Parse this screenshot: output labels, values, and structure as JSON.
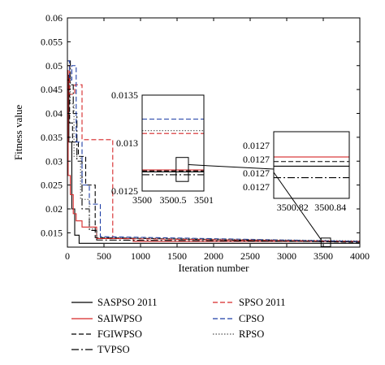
{
  "chart_data": [
    {
      "id": "main",
      "type": "line",
      "title": "",
      "xlabel": "Iteration number",
      "ylabel": "Fitness value",
      "xlim": [
        0,
        4000
      ],
      "ylim": [
        0.012,
        0.06
      ],
      "x_ticks": [
        0,
        500,
        1000,
        1500,
        2000,
        2500,
        3000,
        3500,
        4000
      ],
      "x_tick_labels": [
        "0",
        "500",
        "1000",
        "1500",
        "2000",
        "2500",
        "3000",
        "3500",
        "4000"
      ],
      "y_ticks": [
        0.015,
        0.02,
        0.025,
        0.03,
        0.035,
        0.04,
        0.045,
        0.05,
        0.055,
        0.06
      ],
      "y_tick_labels": [
        "0.015",
        "0.02",
        "0.025",
        "0.03",
        "0.035",
        "0.04",
        "0.045",
        "0.05",
        "0.055",
        "0.06"
      ],
      "grid": false,
      "series": [
        {
          "name": "SASPSO 2011",
          "color": "#000000",
          "dash": "solid",
          "points": [
            [
              0,
              0.048
            ],
            [
              20,
              0.048
            ],
            [
              20,
              0.034
            ],
            [
              60,
              0.034
            ],
            [
              60,
              0.02
            ],
            [
              100,
              0.02
            ],
            [
              100,
              0.0145
            ],
            [
              160,
              0.0145
            ],
            [
              160,
              0.0128
            ],
            [
              4000,
              0.0128
            ]
          ]
        },
        {
          "name": "SAIWPSO",
          "color": "#d62728",
          "dash": "solid",
          "points": [
            [
              0,
              0.049
            ],
            [
              10,
              0.049
            ],
            [
              10,
              0.027
            ],
            [
              40,
              0.027
            ],
            [
              40,
              0.023
            ],
            [
              80,
              0.023
            ],
            [
              80,
              0.019
            ],
            [
              120,
              0.019
            ],
            [
              120,
              0.0175
            ],
            [
              200,
              0.0175
            ],
            [
              200,
              0.0162
            ],
            [
              400,
              0.0162
            ],
            [
              400,
              0.0138
            ],
            [
              900,
              0.0138
            ],
            [
              900,
              0.0132
            ],
            [
              4000,
              0.0132
            ]
          ]
        },
        {
          "name": "FGIWPSO",
          "color": "#000000",
          "dash": "6,3",
          "points": [
            [
              0,
              0.047
            ],
            [
              30,
              0.047
            ],
            [
              30,
              0.038
            ],
            [
              70,
              0.038
            ],
            [
              70,
              0.034
            ],
            [
              150,
              0.034
            ],
            [
              150,
              0.031
            ],
            [
              250,
              0.031
            ],
            [
              250,
              0.025
            ],
            [
              380,
              0.025
            ],
            [
              380,
              0.014
            ],
            [
              4000,
              0.013
            ]
          ]
        },
        {
          "name": "TVPSO",
          "color": "#000000",
          "dash": "9,3,2,3",
          "points": [
            [
              0,
              0.051
            ],
            [
              40,
              0.051
            ],
            [
              40,
              0.046
            ],
            [
              80,
              0.046
            ],
            [
              80,
              0.04
            ],
            [
              130,
              0.04
            ],
            [
              130,
              0.03
            ],
            [
              200,
              0.03
            ],
            [
              200,
              0.02
            ],
            [
              300,
              0.02
            ],
            [
              300,
              0.0155
            ],
            [
              400,
              0.0155
            ],
            [
              400,
              0.0135
            ],
            [
              4000,
              0.0131
            ]
          ]
        },
        {
          "name": "SPSO 2011",
          "color": "#d62728",
          "dash": "6,3",
          "points": [
            [
              0,
              0.05
            ],
            [
              30,
              0.05
            ],
            [
              30,
              0.044
            ],
            [
              100,
              0.044
            ],
            [
              100,
              0.046
            ],
            [
              200,
              0.046
            ],
            [
              200,
              0.0345
            ],
            [
              620,
              0.0345
            ],
            [
              620,
              0.0138
            ],
            [
              4000,
              0.0132
            ]
          ]
        },
        {
          "name": "CPSO",
          "color": "#1f3fa6",
          "dash": "6,3",
          "points": [
            [
              0,
              0.051
            ],
            [
              30,
              0.051
            ],
            [
              30,
              0.047
            ],
            [
              60,
              0.047
            ],
            [
              60,
              0.05
            ],
            [
              120,
              0.05
            ],
            [
              120,
              0.034
            ],
            [
              200,
              0.034
            ],
            [
              200,
              0.025
            ],
            [
              300,
              0.025
            ],
            [
              300,
              0.021
            ],
            [
              450,
              0.021
            ],
            [
              450,
              0.0142
            ],
            [
              4000,
              0.0132
            ]
          ]
        },
        {
          "name": "RPSO",
          "color": "#555555",
          "dash": "1.5,2",
          "points": [
            [
              0,
              0.05
            ],
            [
              40,
              0.05
            ],
            [
              40,
              0.042
            ],
            [
              90,
              0.042
            ],
            [
              90,
              0.031
            ],
            [
              180,
              0.031
            ],
            [
              180,
              0.022
            ],
            [
              300,
              0.022
            ],
            [
              300,
              0.0158
            ],
            [
              400,
              0.0158
            ],
            [
              400,
              0.014
            ],
            [
              4000,
              0.0133
            ]
          ]
        }
      ]
    },
    {
      "id": "inset1",
      "type": "line",
      "xlim": [
        3500,
        3501
      ],
      "ylim": [
        0.0125,
        0.0135
      ],
      "x_ticks": [
        3500,
        3500.5,
        3501
      ],
      "x_tick_labels": [
        "3500",
        "3500.5",
        "3501"
      ],
      "y_ticks": [
        0.0125,
        0.013,
        0.0135
      ],
      "y_tick_labels": [
        "0.0125",
        "0.013",
        "0.0135"
      ],
      "series": [
        {
          "name": "SASPSO 2011",
          "color": "#000000",
          "dash": "solid",
          "points": [
            [
              3500,
              0.0127
            ],
            [
              3501,
              0.0127
            ]
          ]
        },
        {
          "name": "SAIWPSO",
          "color": "#d62728",
          "dash": "solid",
          "points": [
            [
              3500,
              0.01272
            ],
            [
              3501,
              0.01272
            ]
          ]
        },
        {
          "name": "FGIWPSO",
          "color": "#000000",
          "dash": "6,3",
          "points": [
            [
              3500,
              0.01271
            ],
            [
              3501,
              0.01271
            ]
          ]
        },
        {
          "name": "TVPSO",
          "color": "#000000",
          "dash": "9,3,2,3",
          "points": [
            [
              3500,
              0.01267
            ],
            [
              3501,
              0.01267
            ]
          ]
        },
        {
          "name": "SPSO 2011",
          "color": "#d62728",
          "dash": "6,3",
          "points": [
            [
              3500,
              0.0131
            ],
            [
              3501,
              0.0131
            ]
          ]
        },
        {
          "name": "CPSO",
          "color": "#1f3fa6",
          "dash": "6,3",
          "points": [
            [
              3500,
              0.01325
            ],
            [
              3501,
              0.01325
            ]
          ]
        },
        {
          "name": "RPSO",
          "color": "#555555",
          "dash": "1.5,2",
          "points": [
            [
              3500,
              0.01313
            ],
            [
              3501,
              0.01313
            ]
          ]
        }
      ]
    },
    {
      "id": "inset2",
      "type": "line",
      "xlim": [
        3500.81,
        3500.85
      ],
      "ylim": [
        0.012693,
        0.012722
      ],
      "x_ticks": [
        3500.82,
        3500.84
      ],
      "x_tick_labels": [
        "3500.82",
        "3500.84"
      ],
      "y_ticks": [
        0.012698,
        0.012704,
        0.01271,
        0.012716
      ],
      "y_tick_labels": [
        "0.0127",
        "0.0127",
        "0.0127",
        "0.0127"
      ],
      "series": [
        {
          "name": "SAIWPSO",
          "color": "#d62728",
          "dash": "solid",
          "points": [
            [
              3500.81,
              0.012711
            ],
            [
              3500.85,
              0.012711
            ]
          ]
        },
        {
          "name": "FGIWPSO",
          "color": "#000000",
          "dash": "6,3",
          "points": [
            [
              3500.81,
              0.012709
            ],
            [
              3500.85,
              0.012709
            ]
          ]
        },
        {
          "name": "SASPSO 2011",
          "color": "#000000",
          "dash": "solid",
          "points": [
            [
              3500.81,
              0.012707
            ],
            [
              3500.85,
              0.012707
            ]
          ]
        },
        {
          "name": "TVPSO",
          "color": "#000000",
          "dash": "9,3,2,3",
          "points": [
            [
              3500.81,
              0.012702
            ],
            [
              3500.85,
              0.012702
            ]
          ]
        }
      ]
    }
  ],
  "legend": [
    {
      "label": "SASPSO 2011",
      "color": "#000000",
      "dash": "solid"
    },
    {
      "label": "SAIWPSO",
      "color": "#d62728",
      "dash": "solid"
    },
    {
      "label": "FGIWPSO",
      "color": "#000000",
      "dash": "6,3"
    },
    {
      "label": "TVPSO",
      "color": "#000000",
      "dash": "9,3,2,3"
    },
    {
      "label": "SPSO 2011",
      "color": "#d62728",
      "dash": "6,3"
    },
    {
      "label": "CPSO",
      "color": "#1f3fa6",
      "dash": "6,3"
    },
    {
      "label": "RPSO",
      "color": "#555555",
      "dash": "1.5,2"
    }
  ]
}
